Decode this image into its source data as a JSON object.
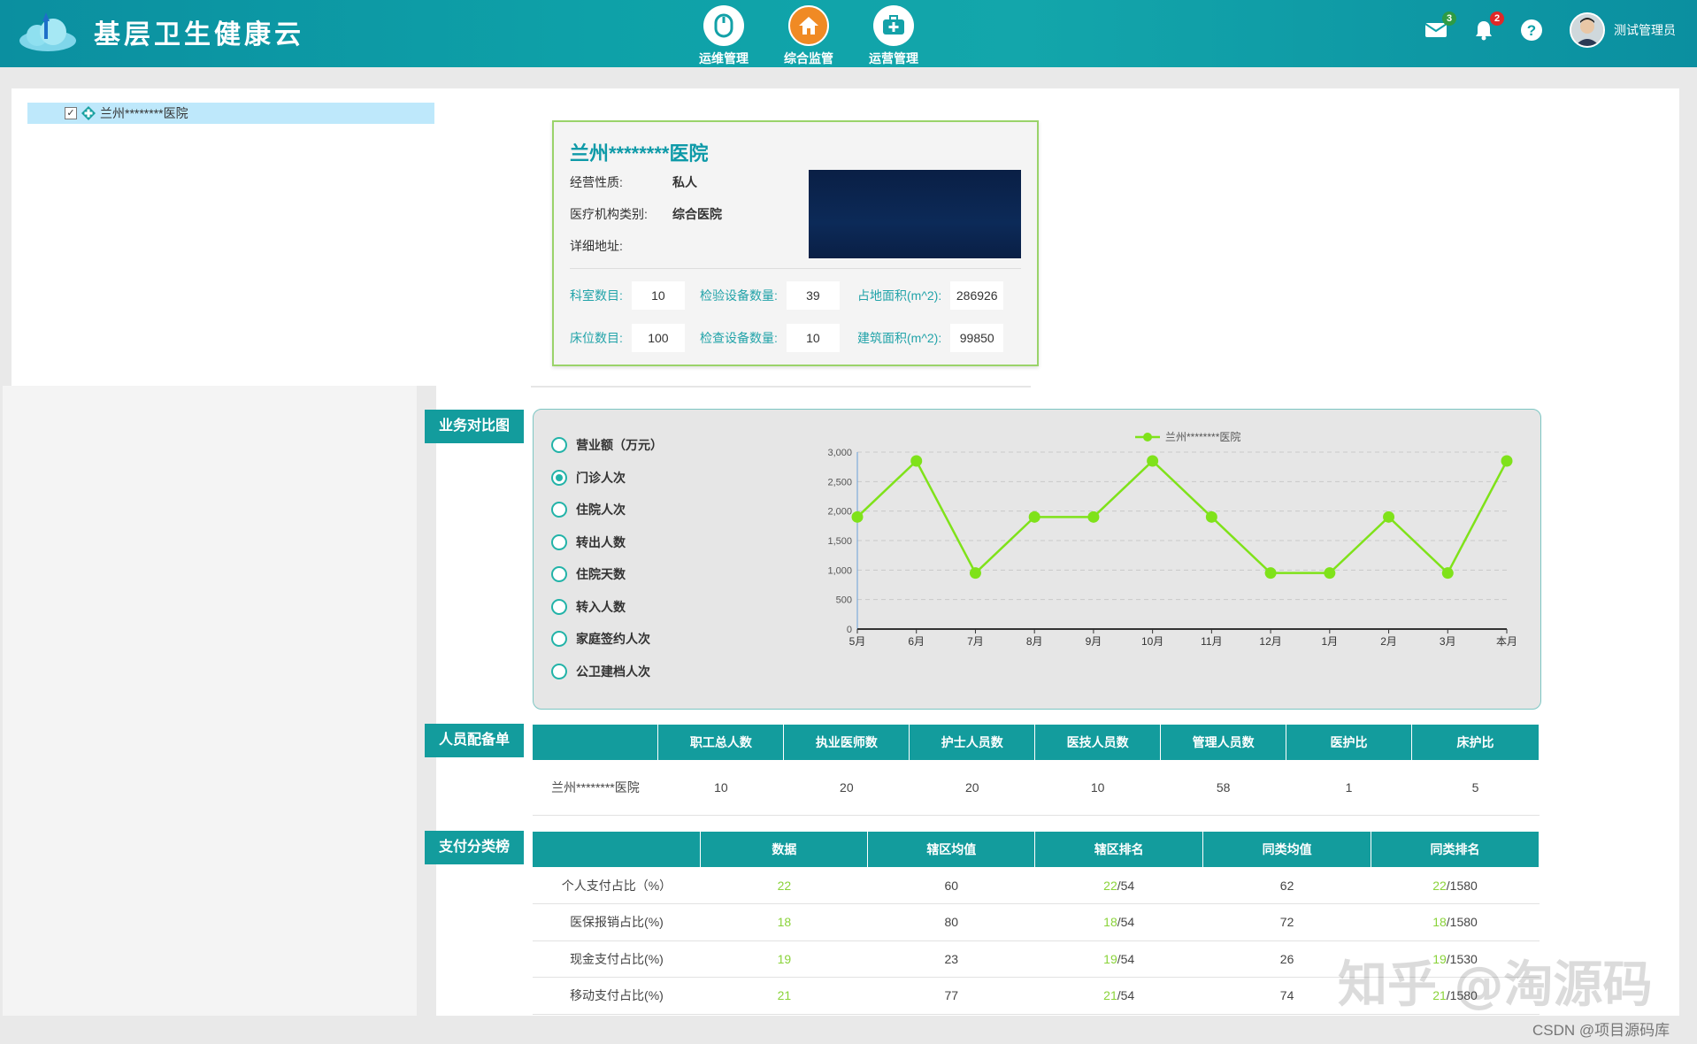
{
  "header": {
    "app_title": "基层卫生健康云",
    "nav": [
      {
        "label": "运维管理",
        "icon": "mouse-icon"
      },
      {
        "label": "综合监管",
        "icon": "house-icon"
      },
      {
        "label": "运营管理",
        "icon": "medical-kit-icon"
      }
    ],
    "mail_count": "3",
    "alert_count": "2",
    "username": "测试管理员"
  },
  "tree": {
    "root_label": "兰州********医院"
  },
  "hospital": {
    "name": "兰州********医院",
    "fields": [
      {
        "key": "经营性质:",
        "value": "私人"
      },
      {
        "key": "医疗机构类别:",
        "value": "综合医院"
      },
      {
        "key": "详细地址:",
        "value": ""
      }
    ],
    "stats_row1": [
      {
        "label": "科室数目:",
        "value": "10"
      },
      {
        "label": "检验设备数量:",
        "value": "39"
      },
      {
        "label": "占地面积(m^2):",
        "value": "286926"
      }
    ],
    "stats_row2": [
      {
        "label": "床位数目:",
        "value": "100"
      },
      {
        "label": "检查设备数量:",
        "value": "10"
      },
      {
        "label": "建筑面积(m^2):",
        "value": "99850"
      }
    ]
  },
  "sections": {
    "business": "业务对比图",
    "staff": "人员配备单",
    "payment": "支付分类榜"
  },
  "metrics": [
    {
      "label": "营业额（万元）",
      "selected": false
    },
    {
      "label": "门诊人次",
      "selected": true
    },
    {
      "label": "住院人次",
      "selected": false
    },
    {
      "label": "转出人数",
      "selected": false
    },
    {
      "label": "住院天数",
      "selected": false
    },
    {
      "label": "转入人数",
      "selected": false
    },
    {
      "label": "家庭签约人次",
      "selected": false
    },
    {
      "label": "公卫建档人次",
      "selected": false
    }
  ],
  "chart_data": {
    "type": "line",
    "categories": [
      "5月",
      "6月",
      "7月",
      "8月",
      "9月",
      "10月",
      "11月",
      "12月",
      "1月",
      "2月",
      "3月",
      "本月"
    ],
    "series": [
      {
        "name": "兰州********医院",
        "values": [
          1900,
          2850,
          950,
          1900,
          1900,
          2850,
          1900,
          950,
          950,
          1900,
          950,
          2850
        ],
        "color": "#7fe21a"
      }
    ],
    "ylim": [
      0,
      3000
    ],
    "yticks": [
      "0",
      "500",
      "1,000",
      "1,500",
      "2,000",
      "2,500",
      "3,000"
    ],
    "grid": true,
    "legend": "top"
  },
  "staff_table": {
    "headers": [
      "",
      "职工总人数",
      "执业医师数",
      "护士人员数",
      "医技人员数",
      "管理人员数",
      "医护比",
      "床护比"
    ],
    "rows": [
      [
        "兰州********医院",
        "10",
        "20",
        "20",
        "10",
        "58",
        "1",
        "5"
      ]
    ]
  },
  "payment_table": {
    "headers": [
      "",
      "数据",
      "辖区均值",
      "辖区排名",
      "同类均值",
      "同类排名"
    ],
    "rows": [
      {
        "label": "个人支付占比（%）",
        "data": "22",
        "area_avg": "60",
        "area_rank": "22",
        "area_total": "/54",
        "peer_avg": "62",
        "peer_rank": "22",
        "peer_total": "/1580"
      },
      {
        "label": "医保报销占比(%)",
        "data": "18",
        "area_avg": "80",
        "area_rank": "18",
        "area_total": "/54",
        "peer_avg": "72",
        "peer_rank": "18",
        "peer_total": "/1580"
      },
      {
        "label": "现金支付占比(%)",
        "data": "19",
        "area_avg": "23",
        "area_rank": "19",
        "area_total": "/54",
        "peer_avg": "26",
        "peer_rank": "19",
        "peer_total": "/1530"
      },
      {
        "label": "移动支付占比(%)",
        "data": "21",
        "area_avg": "77",
        "area_rank": "21",
        "area_total": "/54",
        "peer_avg": "74",
        "peer_rank": "21",
        "peer_total": "/1580"
      }
    ]
  },
  "watermark": "知乎 @淘源码",
  "credit": "CSDN @项目源码库",
  "colors": {
    "header": "#0ea1a8",
    "accent": "#139c9d",
    "line": "#7fe21a",
    "highlight": "#8ad33a"
  }
}
